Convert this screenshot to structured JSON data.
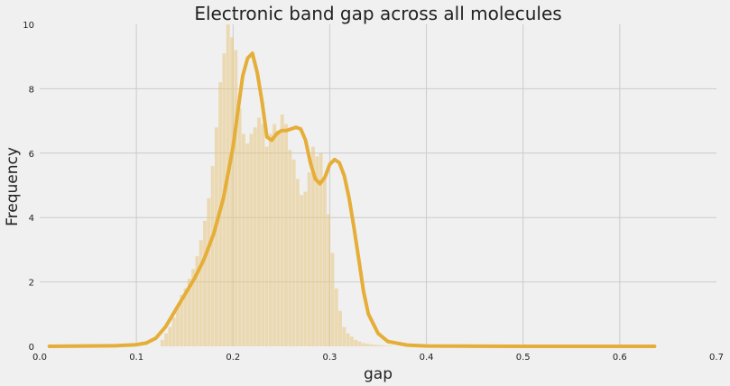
{
  "chart_data": {
    "type": "bar",
    "title": "Electronic band gap across all molecules",
    "xlabel": "gap",
    "ylabel": "Frequency",
    "xlim": [
      0.0,
      0.7
    ],
    "ylim": [
      0,
      10
    ],
    "xticks": [
      "0.0",
      "0.1",
      "0.2",
      "0.3",
      "0.4",
      "0.5",
      "0.6",
      "0.7"
    ],
    "yticks": [
      "0",
      "2",
      "4",
      "6",
      "8",
      "10"
    ],
    "grid": true,
    "color": "#e5ae38",
    "histogram": {
      "bin_start": 0.125,
      "bin_width": 0.004,
      "values": [
        0.2,
        0.4,
        0.6,
        0.9,
        1.2,
        1.6,
        1.8,
        2.1,
        2.4,
        2.8,
        3.3,
        3.9,
        4.6,
        5.6,
        6.8,
        8.2,
        9.1,
        10.0,
        9.6,
        9.2,
        7.4,
        6.6,
        6.3,
        6.6,
        6.8,
        7.1,
        6.9,
        6.2,
        6.6,
        6.9,
        6.7,
        7.2,
        6.9,
        6.1,
        5.8,
        5.2,
        4.7,
        4.8,
        5.4,
        6.2,
        5.9,
        6.0,
        5.2,
        4.1,
        2.9,
        1.8,
        1.1,
        0.6,
        0.4,
        0.3,
        0.2,
        0.15,
        0.1,
        0.08,
        0.06,
        0.05,
        0.04,
        0.03,
        0.02,
        0.02
      ]
    },
    "kde": {
      "x": [
        0.01,
        0.05,
        0.08,
        0.1,
        0.11,
        0.12,
        0.13,
        0.14,
        0.15,
        0.16,
        0.17,
        0.18,
        0.19,
        0.2,
        0.205,
        0.21,
        0.215,
        0.22,
        0.225,
        0.23,
        0.235,
        0.24,
        0.245,
        0.25,
        0.255,
        0.26,
        0.265,
        0.27,
        0.275,
        0.28,
        0.285,
        0.29,
        0.295,
        0.3,
        0.305,
        0.31,
        0.315,
        0.32,
        0.325,
        0.33,
        0.335,
        0.34,
        0.35,
        0.36,
        0.38,
        0.4,
        0.45,
        0.5,
        0.55,
        0.6,
        0.636
      ],
      "y": [
        0,
        0.01,
        0.02,
        0.05,
        0.1,
        0.25,
        0.6,
        1.1,
        1.6,
        2.1,
        2.7,
        3.5,
        4.6,
        6.2,
        7.3,
        8.4,
        8.95,
        9.1,
        8.5,
        7.6,
        6.5,
        6.4,
        6.6,
        6.7,
        6.7,
        6.75,
        6.8,
        6.75,
        6.4,
        5.7,
        5.2,
        5.05,
        5.25,
        5.65,
        5.8,
        5.7,
        5.3,
        4.6,
        3.7,
        2.7,
        1.7,
        1.0,
        0.4,
        0.15,
        0.04,
        0.01,
        0.003,
        0.001,
        0,
        0,
        0
      ]
    }
  }
}
